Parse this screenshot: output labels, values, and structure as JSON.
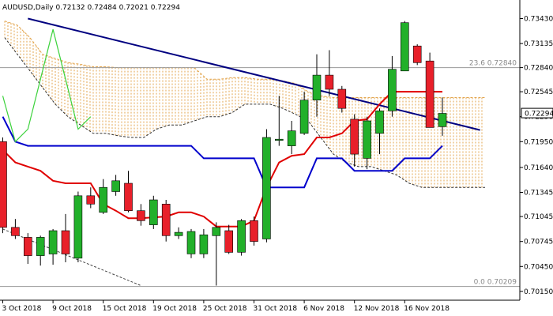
{
  "chart_data": {
    "type": "candlestick",
    "symbol": "AUDUSD",
    "timeframe": "Daily",
    "ohlc_header": [
      "0.72132",
      "0.72484",
      "0.72021",
      "0.72294"
    ],
    "current_price": "0.72294",
    "ylim": [
      0.7012,
      0.7352
    ],
    "y_ticks": [
      0.7343,
      0.7313,
      0.7284,
      0.7255,
      0.7225,
      0.7195,
      0.7164,
      0.7134,
      0.7105,
      0.7075,
      0.7045,
      0.7015
    ],
    "y_tick_labels": [
      "0.73430",
      "0.73135",
      "0.72840",
      "0.72545",
      "0.72250",
      "0.71950",
      "0.71640",
      "0.71345",
      "0.71045",
      "0.70745",
      "0.70450",
      "0.70150"
    ],
    "x_labels": [
      "3 Oct 2018",
      "9 Oct 2018",
      "15 Oct 2018",
      "19 Oct 2018",
      "25 Oct 2018",
      "31 Oct 2018",
      "6 Nov 2018",
      "12 Nov 2018",
      "16 Nov 2018"
    ],
    "x_label_index": [
      0,
      4,
      8,
      12,
      16,
      20,
      24,
      28,
      32
    ],
    "fib_levels": [
      {
        "label": "23.6",
        "price_label": "0.72840",
        "value": 0.7284
      },
      {
        "label": "0.0",
        "price_label": "0.70209",
        "value": 0.70209
      }
    ],
    "candles": [
      {
        "o": 0.7195,
        "h": 0.72,
        "l": 0.7085,
        "c": 0.7092
      },
      {
        "o": 0.7092,
        "h": 0.7102,
        "l": 0.7078,
        "c": 0.7082
      },
      {
        "o": 0.708,
        "h": 0.7085,
        "l": 0.7048,
        "c": 0.7058
      },
      {
        "o": 0.7058,
        "h": 0.7082,
        "l": 0.7046,
        "c": 0.708
      },
      {
        "o": 0.706,
        "h": 0.709,
        "l": 0.7047,
        "c": 0.7088
      },
      {
        "o": 0.7088,
        "h": 0.7108,
        "l": 0.705,
        "c": 0.706
      },
      {
        "o": 0.7055,
        "h": 0.7135,
        "l": 0.705,
        "c": 0.713
      },
      {
        "o": 0.713,
        "h": 0.714,
        "l": 0.7115,
        "c": 0.712
      },
      {
        "o": 0.711,
        "h": 0.715,
        "l": 0.7108,
        "c": 0.714
      },
      {
        "o": 0.7135,
        "h": 0.7155,
        "l": 0.713,
        "c": 0.7148
      },
      {
        "o": 0.7145,
        "h": 0.716,
        "l": 0.711,
        "c": 0.7112
      },
      {
        "o": 0.7112,
        "h": 0.712,
        "l": 0.7094,
        "c": 0.71
      },
      {
        "o": 0.7095,
        "h": 0.713,
        "l": 0.709,
        "c": 0.7125
      },
      {
        "o": 0.712,
        "h": 0.7125,
        "l": 0.7075,
        "c": 0.7082
      },
      {
        "o": 0.7082,
        "h": 0.7092,
        "l": 0.7078,
        "c": 0.7086
      },
      {
        "o": 0.706,
        "h": 0.709,
        "l": 0.7055,
        "c": 0.7087
      },
      {
        "o": 0.706,
        "h": 0.709,
        "l": 0.7055,
        "c": 0.7083
      },
      {
        "o": 0.7082,
        "h": 0.7098,
        "l": 0.7022,
        "c": 0.7092
      },
      {
        "o": 0.7088,
        "h": 0.7095,
        "l": 0.706,
        "c": 0.7062
      },
      {
        "o": 0.7062,
        "h": 0.7102,
        "l": 0.7058,
        "c": 0.71
      },
      {
        "o": 0.71,
        "h": 0.7105,
        "l": 0.707,
        "c": 0.7075
      },
      {
        "o": 0.7078,
        "h": 0.721,
        "l": 0.7074,
        "c": 0.72
      },
      {
        "o": 0.7198,
        "h": 0.725,
        "l": 0.719,
        "c": 0.7198
      },
      {
        "o": 0.719,
        "h": 0.722,
        "l": 0.718,
        "c": 0.7208
      },
      {
        "o": 0.7205,
        "h": 0.7255,
        "l": 0.7203,
        "c": 0.7245
      },
      {
        "o": 0.7245,
        "h": 0.73,
        "l": 0.7225,
        "c": 0.7275
      },
      {
        "o": 0.7275,
        "h": 0.7305,
        "l": 0.725,
        "c": 0.7258
      },
      {
        "o": 0.7258,
        "h": 0.7262,
        "l": 0.723,
        "c": 0.7235
      },
      {
        "o": 0.7222,
        "h": 0.7228,
        "l": 0.7165,
        "c": 0.718
      },
      {
        "o": 0.7175,
        "h": 0.7225,
        "l": 0.7162,
        "c": 0.722
      },
      {
        "o": 0.7205,
        "h": 0.7235,
        "l": 0.718,
        "c": 0.7232
      },
      {
        "o": 0.7232,
        "h": 0.7298,
        "l": 0.7225,
        "c": 0.7282
      },
      {
        "o": 0.728,
        "h": 0.734,
        "l": 0.728,
        "c": 0.7338
      },
      {
        "o": 0.731,
        "h": 0.7312,
        "l": 0.7287,
        "c": 0.729
      },
      {
        "o": 0.7292,
        "h": 0.7302,
        "l": 0.7212,
        "c": 0.7212
      },
      {
        "o": 0.7213,
        "h": 0.7248,
        "l": 0.7202,
        "c": 0.7229
      }
    ],
    "indicators": {
      "red_line": [
        0.7185,
        0.717,
        0.7165,
        0.716,
        0.7148,
        0.7145,
        0.7145,
        0.7145,
        0.712,
        0.7112,
        0.7103,
        0.7103,
        0.7104,
        0.7105,
        0.711,
        0.711,
        0.7105,
        0.7093,
        0.7093,
        0.7093,
        0.71,
        0.714,
        0.717,
        0.7178,
        0.718,
        0.72,
        0.72,
        0.7205,
        0.722,
        0.7222,
        0.724,
        0.7255,
        0.7255,
        0.7255,
        0.7255,
        0.7255
      ],
      "blue_line": [
        0.7225,
        0.7195,
        0.719,
        0.719,
        0.719,
        0.719,
        0.719,
        0.719,
        0.719,
        0.719,
        0.719,
        0.719,
        0.719,
        0.719,
        0.719,
        0.719,
        0.7175,
        0.7175,
        0.7175,
        0.7175,
        0.7175,
        0.714,
        0.714,
        0.714,
        0.714,
        0.7175,
        0.7175,
        0.7175,
        0.716,
        0.716,
        0.716,
        0.716,
        0.7175,
        0.7175,
        0.7175,
        0.719
      ],
      "green_line": [
        0.725,
        0.7195,
        0.721,
        0.727,
        0.733,
        0.727,
        0.721,
        0.7225
      ],
      "navy_trendline": [
        [
          2,
          0.7343
        ],
        [
          38,
          0.7209
        ]
      ],
      "lagging_dashed": [
        [
          0,
          0.709
        ],
        [
          11,
          0.7022
        ]
      ],
      "cloud": {
        "span_a": [
          0.734,
          0.7335,
          0.732,
          0.73,
          0.7295,
          0.729,
          0.7288,
          0.7285,
          0.7285,
          0.7284,
          0.7284,
          0.7284,
          0.7284,
          0.7284,
          0.7284,
          0.7284,
          0.727,
          0.727,
          0.7272,
          0.7272,
          0.727,
          0.727,
          0.7268,
          0.7265,
          0.7255,
          0.725,
          0.7248,
          0.7248,
          0.7248,
          0.7248,
          0.7248,
          0.7248,
          0.7248,
          0.7248,
          0.7248,
          0.7248,
          0.7248,
          0.7248,
          0.7248
        ],
        "span_b": [
          0.732,
          0.73,
          0.728,
          0.726,
          0.724,
          0.7225,
          0.7215,
          0.7205,
          0.7205,
          0.7202,
          0.72,
          0.72,
          0.721,
          0.7215,
          0.7215,
          0.722,
          0.7225,
          0.7225,
          0.723,
          0.724,
          0.724,
          0.724,
          0.7235,
          0.7228,
          0.722,
          0.72,
          0.718,
          0.717,
          0.7165,
          0.7165,
          0.716,
          0.7155,
          0.7145,
          0.714,
          0.714,
          0.714,
          0.714,
          0.714,
          0.714
        ]
      }
    },
    "colors": {
      "bull": "#22b02a",
      "bear": "#e8202a",
      "red_line": "#e00000",
      "blue_line": "#0000cc",
      "green_line": "#3cd23c",
      "navy_trendline": "#000080",
      "cloud": "#e3a64f",
      "price_box": "#ffffff"
    }
  }
}
